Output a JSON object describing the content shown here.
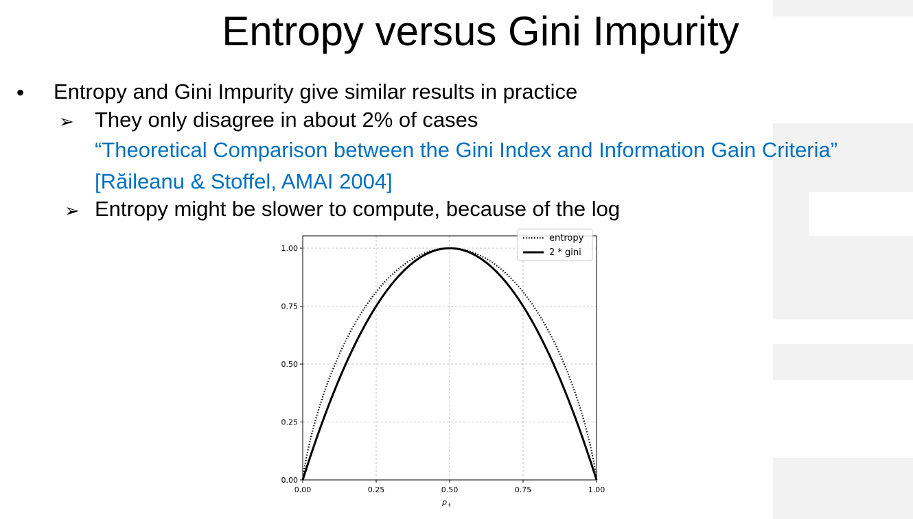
{
  "slide": {
    "title": "Entropy versus Gini Impurity",
    "bullet_symbol": "•",
    "arrow_symbol": "➢",
    "bullet": "Entropy and Gini Impurity give similar results in practice",
    "sub1": "They only disagree in about 2% of cases",
    "reference_line1": "“Theoretical Comparison between the Gini Index and Information Gain Criteria”",
    "reference_line2": "[Răileanu & Stoffel, AMAI 2004]",
    "sub2": "Entropy might be slower to compute, because of the log",
    "colors": {
      "reference": "#0070c0",
      "text": "#000000",
      "watermark": "#f2f2f2"
    }
  },
  "chart_data": {
    "type": "line",
    "xlabel": "p+",
    "ylabel": "",
    "xlim": [
      0,
      1
    ],
    "ylim": [
      0,
      1
    ],
    "xticks": [
      "0.00",
      "0.25",
      "0.50",
      "0.75",
      "1.00"
    ],
    "yticks": [
      "0.00",
      "0.25",
      "0.50",
      "0.75",
      "1.00"
    ],
    "grid": true,
    "legend_position": "top-right",
    "x": [
      0,
      0.05,
      0.1,
      0.15,
      0.2,
      0.25,
      0.3,
      0.35,
      0.4,
      0.45,
      0.5,
      0.55,
      0.6,
      0.65,
      0.7,
      0.75,
      0.8,
      0.85,
      0.9,
      0.95,
      1
    ],
    "series": [
      {
        "name": "entropy",
        "style": "dotted",
        "values": [
          0,
          0.286,
          0.469,
          0.61,
          0.722,
          0.811,
          0.881,
          0.934,
          0.971,
          0.993,
          1,
          0.993,
          0.971,
          0.934,
          0.881,
          0.811,
          0.722,
          0.61,
          0.469,
          0.286,
          0
        ]
      },
      {
        "name": "2 * gini",
        "style": "solid",
        "values": [
          0,
          0.19,
          0.36,
          0.51,
          0.64,
          0.75,
          0.84,
          0.91,
          0.96,
          0.99,
          1,
          0.99,
          0.96,
          0.91,
          0.84,
          0.75,
          0.64,
          0.51,
          0.36,
          0.19,
          0
        ]
      }
    ]
  }
}
